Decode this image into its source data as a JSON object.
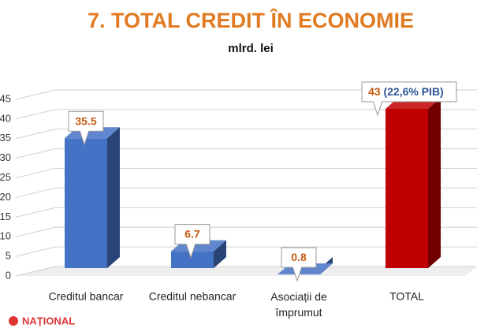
{
  "chart_data": {
    "type": "bar3d",
    "title": "7. TOTAL CREDIT ÎN ECONOMIE",
    "subtitle": "mlrd. lei",
    "categories": [
      "Creditul bancar",
      "Creditul nebancar",
      "Asociații de împrumut",
      "TOTAL"
    ],
    "values": [
      35.5,
      6.7,
      0.8,
      43
    ],
    "colors": [
      "#4472c4",
      "#4472c4",
      "#4472c4",
      "#c00000"
    ],
    "annotation": "(22,6% PIB)",
    "logo": "NAȚIONAL",
    "ylim": [
      0,
      45
    ],
    "yticks": [
      0,
      5,
      10,
      15,
      20,
      25,
      30,
      35,
      40,
      45
    ],
    "grid": true
  }
}
